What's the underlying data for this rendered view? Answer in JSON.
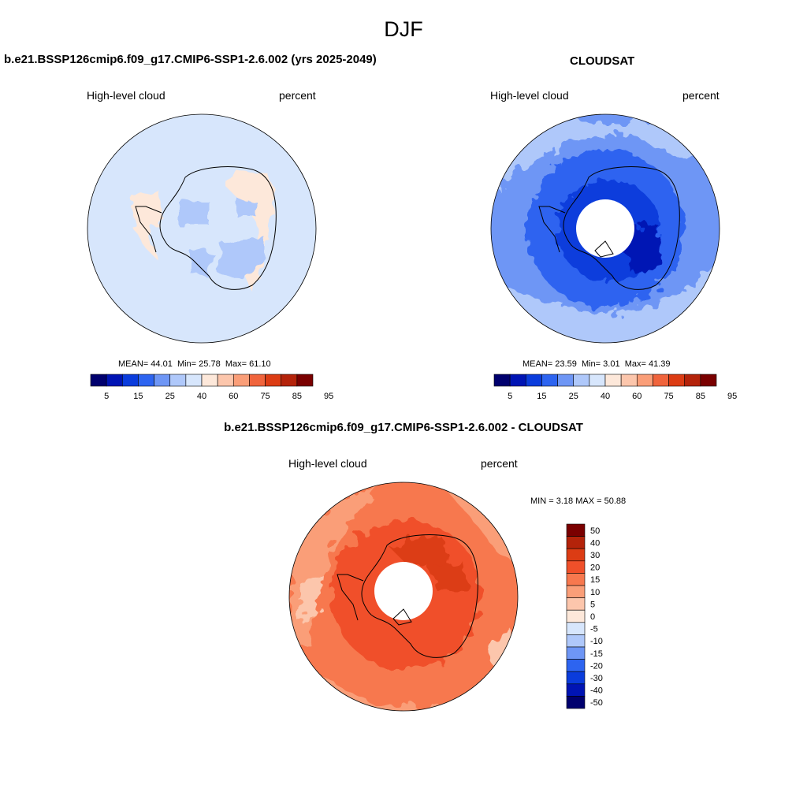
{
  "figure": {
    "title": "DJF"
  },
  "panels": [
    {
      "title": "b.e21.BSSP126cmip6.f09_g17.CMIP6-SSP1-2.6.002 (yrs 2025-2049)",
      "left_label": "High-level cloud",
      "right_label": "percent",
      "stats": {
        "mean_label": "MEAN=",
        "mean": "44.01",
        "min_label": "Min=",
        "min": "25.78",
        "max_label": "Max=",
        "max": "61.10"
      }
    },
    {
      "title": "CLOUDSAT",
      "left_label": "High-level cloud",
      "right_label": "percent",
      "stats": {
        "mean_label": "MEAN=",
        "mean": "23.59",
        "min_label": "Min=",
        "min": "3.01",
        "max_label": "Max=",
        "max": "41.39"
      }
    },
    {
      "title": "b.e21.BSSP126cmip6.f09_g17.CMIP6-SSP1-2.6.002 - CLOUDSAT",
      "left_label": "High-level cloud",
      "right_label": "percent",
      "stats": {
        "min_label": "MIN =",
        "min": "3.18",
        "max_label": "MAX =",
        "max": "50.88"
      }
    }
  ],
  "colorbars": {
    "absolute": {
      "tick_labels": [
        "5",
        "15",
        "25",
        "40",
        "60",
        "75",
        "85",
        "95"
      ],
      "colors": [
        "#00006e",
        "#0014b4",
        "#0a3cdc",
        "#2d64f0",
        "#6e96f5",
        "#afc8fa",
        "#d7e6fc",
        "#fde8da",
        "#fcc6ac",
        "#fa9e78",
        "#f0643c",
        "#dc3c14",
        "#b4230a",
        "#7a0000"
      ]
    },
    "difference": {
      "tick_labels": [
        "50",
        "40",
        "30",
        "20",
        "15",
        "10",
        "5",
        "0",
        "-5",
        "-10",
        "-15",
        "-20",
        "-30",
        "-40",
        "-50"
      ],
      "colors": [
        "#7a0000",
        "#b4230a",
        "#dc3c14",
        "#f0502a",
        "#f7784e",
        "#fa9e78",
        "#fcc6ac",
        "#fde8da",
        "#d7e6fc",
        "#afc8fa",
        "#6e96f5",
        "#2d64f0",
        "#0a3cdc",
        "#0014b4",
        "#00006e"
      ]
    }
  }
}
